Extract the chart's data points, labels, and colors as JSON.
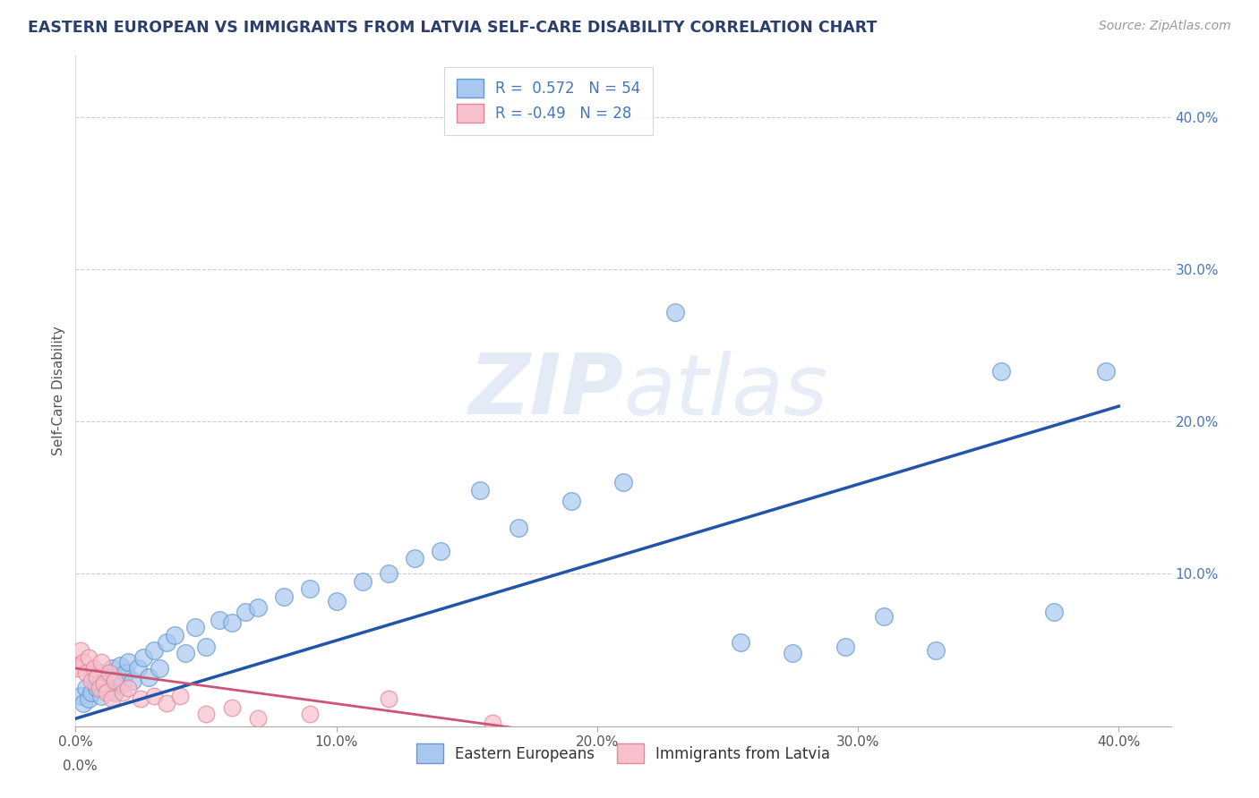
{
  "title": "EASTERN EUROPEAN VS IMMIGRANTS FROM LATVIA SELF-CARE DISABILITY CORRELATION CHART",
  "source": "Source: ZipAtlas.com",
  "ylabel": "Self-Care Disability",
  "xlim": [
    0.0,
    0.42
  ],
  "ylim": [
    0.0,
    0.44
  ],
  "r_blue": 0.572,
  "n_blue": 54,
  "r_pink": -0.49,
  "n_pink": 28,
  "blue_marker_color": "#A8C8F0",
  "blue_marker_edge": "#6699CC",
  "pink_marker_color": "#F8C0CC",
  "pink_marker_edge": "#E08898",
  "blue_line_color": "#2255AA",
  "pink_line_color": "#CC5577",
  "background_color": "#FFFFFF",
  "grid_color": "#C8C8C8",
  "title_color": "#2C3E6B",
  "legend_r_color": "#4477BB",
  "blue_scatter_x": [
    0.002,
    0.003,
    0.004,
    0.005,
    0.006,
    0.007,
    0.008,
    0.009,
    0.01,
    0.011,
    0.012,
    0.013,
    0.014,
    0.015,
    0.016,
    0.017,
    0.018,
    0.019,
    0.02,
    0.022,
    0.024,
    0.026,
    0.028,
    0.03,
    0.032,
    0.035,
    0.038,
    0.042,
    0.046,
    0.05,
    0.055,
    0.06,
    0.065,
    0.07,
    0.08,
    0.09,
    0.1,
    0.11,
    0.12,
    0.13,
    0.14,
    0.155,
    0.17,
    0.19,
    0.21,
    0.23,
    0.255,
    0.275,
    0.295,
    0.31,
    0.33,
    0.355,
    0.375,
    0.395
  ],
  "blue_scatter_y": [
    0.02,
    0.015,
    0.025,
    0.018,
    0.022,
    0.03,
    0.025,
    0.035,
    0.02,
    0.028,
    0.032,
    0.025,
    0.038,
    0.022,
    0.03,
    0.04,
    0.028,
    0.035,
    0.042,
    0.03,
    0.038,
    0.045,
    0.032,
    0.05,
    0.038,
    0.055,
    0.06,
    0.048,
    0.065,
    0.052,
    0.07,
    0.068,
    0.075,
    0.078,
    0.085,
    0.09,
    0.082,
    0.095,
    0.1,
    0.11,
    0.115,
    0.155,
    0.13,
    0.148,
    0.16,
    0.272,
    0.055,
    0.048,
    0.052,
    0.072,
    0.05,
    0.233,
    0.075,
    0.233
  ],
  "pink_scatter_x": [
    0.0,
    0.001,
    0.002,
    0.003,
    0.004,
    0.005,
    0.006,
    0.007,
    0.008,
    0.009,
    0.01,
    0.011,
    0.012,
    0.013,
    0.014,
    0.015,
    0.018,
    0.02,
    0.025,
    0.03,
    0.035,
    0.04,
    0.05,
    0.06,
    0.07,
    0.09,
    0.12,
    0.16
  ],
  "pink_scatter_y": [
    0.04,
    0.038,
    0.05,
    0.042,
    0.035,
    0.045,
    0.03,
    0.038,
    0.032,
    0.025,
    0.042,
    0.028,
    0.022,
    0.035,
    0.018,
    0.03,
    0.022,
    0.025,
    0.018,
    0.02,
    0.015,
    0.02,
    0.008,
    0.012,
    0.005,
    0.008,
    0.018,
    0.002
  ],
  "blue_line_x": [
    0.0,
    0.4
  ],
  "blue_line_y": [
    0.005,
    0.21
  ],
  "pink_line_x": [
    0.0,
    0.185
  ],
  "pink_line_y": [
    0.038,
    -0.005
  ]
}
